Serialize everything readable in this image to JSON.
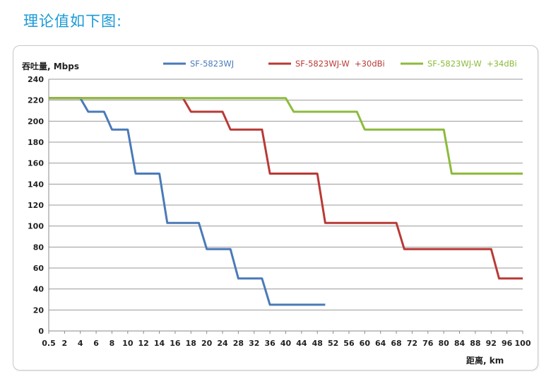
{
  "page": {
    "heading": "理论值如下图:"
  },
  "chart_data": {
    "type": "line",
    "title": "",
    "xlabel": "距离, km",
    "ylabel": "吞吐量, Mbps",
    "ylim": [
      0,
      240
    ],
    "yticks": [
      0,
      20,
      40,
      60,
      80,
      100,
      120,
      140,
      160,
      180,
      200,
      220,
      240
    ],
    "categories": [
      "0.5",
      "2",
      "4",
      "6",
      "8",
      "10",
      "12",
      "14",
      "16",
      "18",
      "20",
      "24",
      "28",
      "32",
      "36",
      "40",
      "44",
      "48",
      "52",
      "56",
      "60",
      "64",
      "68",
      "72",
      "76",
      "80",
      "84",
      "88",
      "92",
      "96",
      "100"
    ],
    "grid": "horizontal",
    "legend_position": "top",
    "series": [
      {
        "name": "SF-5823WJ",
        "color": "#4a7ab8",
        "points": [
          [
            0,
            222
          ],
          [
            2,
            222
          ],
          [
            2.5,
            209
          ],
          [
            3.5,
            209
          ],
          [
            4,
            192
          ],
          [
            5,
            192
          ],
          [
            5.5,
            150
          ],
          [
            7,
            150
          ],
          [
            7.5,
            103
          ],
          [
            9.5,
            103
          ],
          [
            10,
            78
          ],
          [
            11.5,
            78
          ],
          [
            12,
            50
          ],
          [
            13.5,
            50
          ],
          [
            14,
            25
          ],
          [
            17.5,
            25
          ]
        ]
      },
      {
        "name": "SF-5823WJ-W  +30dBi",
        "color": "#b83a36",
        "points": [
          [
            0,
            222
          ],
          [
            8.5,
            222
          ],
          [
            9,
            209
          ],
          [
            11,
            209
          ],
          [
            11.5,
            192
          ],
          [
            13.5,
            192
          ],
          [
            14,
            150
          ],
          [
            17,
            150
          ],
          [
            17.5,
            103
          ],
          [
            22,
            103
          ],
          [
            22.5,
            78
          ],
          [
            28,
            78
          ],
          [
            28.5,
            50
          ],
          [
            30,
            50
          ]
        ]
      },
      {
        "name": "SF-5823WJ-W  +34dBi",
        "color": "#8cbb3c",
        "points": [
          [
            0,
            222
          ],
          [
            15,
            222
          ],
          [
            15.5,
            209
          ],
          [
            19.5,
            209
          ],
          [
            20,
            192
          ],
          [
            25,
            192
          ],
          [
            25.5,
            150
          ],
          [
            30,
            150
          ]
        ]
      }
    ]
  }
}
